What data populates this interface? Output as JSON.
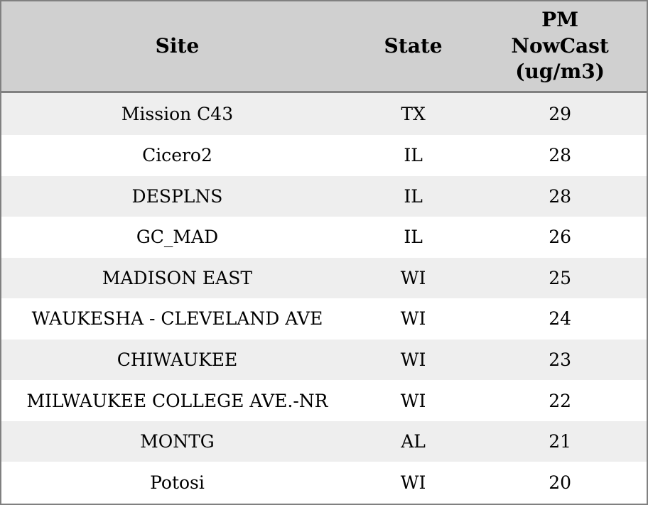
{
  "chart_data": {
    "type": "table",
    "title": "",
    "columns": [
      "Site",
      "State",
      "PM NowCast (ug/m3)"
    ],
    "rows": [
      [
        "Mission C43",
        "TX",
        29
      ],
      [
        "Cicero2",
        "IL",
        28
      ],
      [
        "DESPLNS",
        "IL",
        28
      ],
      [
        "GC_MAD",
        "IL",
        26
      ],
      [
        "MADISON EAST",
        "WI",
        25
      ],
      [
        "WAUKESHA - CLEVELAND AVE",
        "WI",
        24
      ],
      [
        "CHIWAUKEE",
        "WI",
        23
      ],
      [
        "MILWAUKEE COLLEGE AVE.-NR",
        "WI",
        22
      ],
      [
        "MONTG",
        "AL",
        21
      ],
      [
        "Potosi",
        "WI",
        20
      ]
    ]
  },
  "table": {
    "headers": {
      "site": "Site",
      "state": "State",
      "pm": "PM\nNowCast\n(ug/m3)"
    },
    "rows": [
      {
        "site": "Mission C43",
        "state": "TX",
        "pm": "29"
      },
      {
        "site": "Cicero2",
        "state": "IL",
        "pm": "28"
      },
      {
        "site": "DESPLNS",
        "state": "IL",
        "pm": "28"
      },
      {
        "site": "GC_MAD",
        "state": "IL",
        "pm": "26"
      },
      {
        "site": "MADISON EAST",
        "state": "WI",
        "pm": "25"
      },
      {
        "site": "WAUKESHA - CLEVELAND AVE",
        "state": "WI",
        "pm": "24"
      },
      {
        "site": "CHIWAUKEE",
        "state": "WI",
        "pm": "23"
      },
      {
        "site": "MILWAUKEE COLLEGE AVE.-NR",
        "state": "WI",
        "pm": "22"
      },
      {
        "site": "MONTG",
        "state": "AL",
        "pm": "21"
      },
      {
        "site": "Potosi",
        "state": "WI",
        "pm": "20"
      }
    ]
  },
  "colors": {
    "header_bg": "#d0d0d0",
    "row_alt_bg": "#eeeeee",
    "row_bg": "#ffffff",
    "border": "#808080",
    "text": "#000000"
  }
}
